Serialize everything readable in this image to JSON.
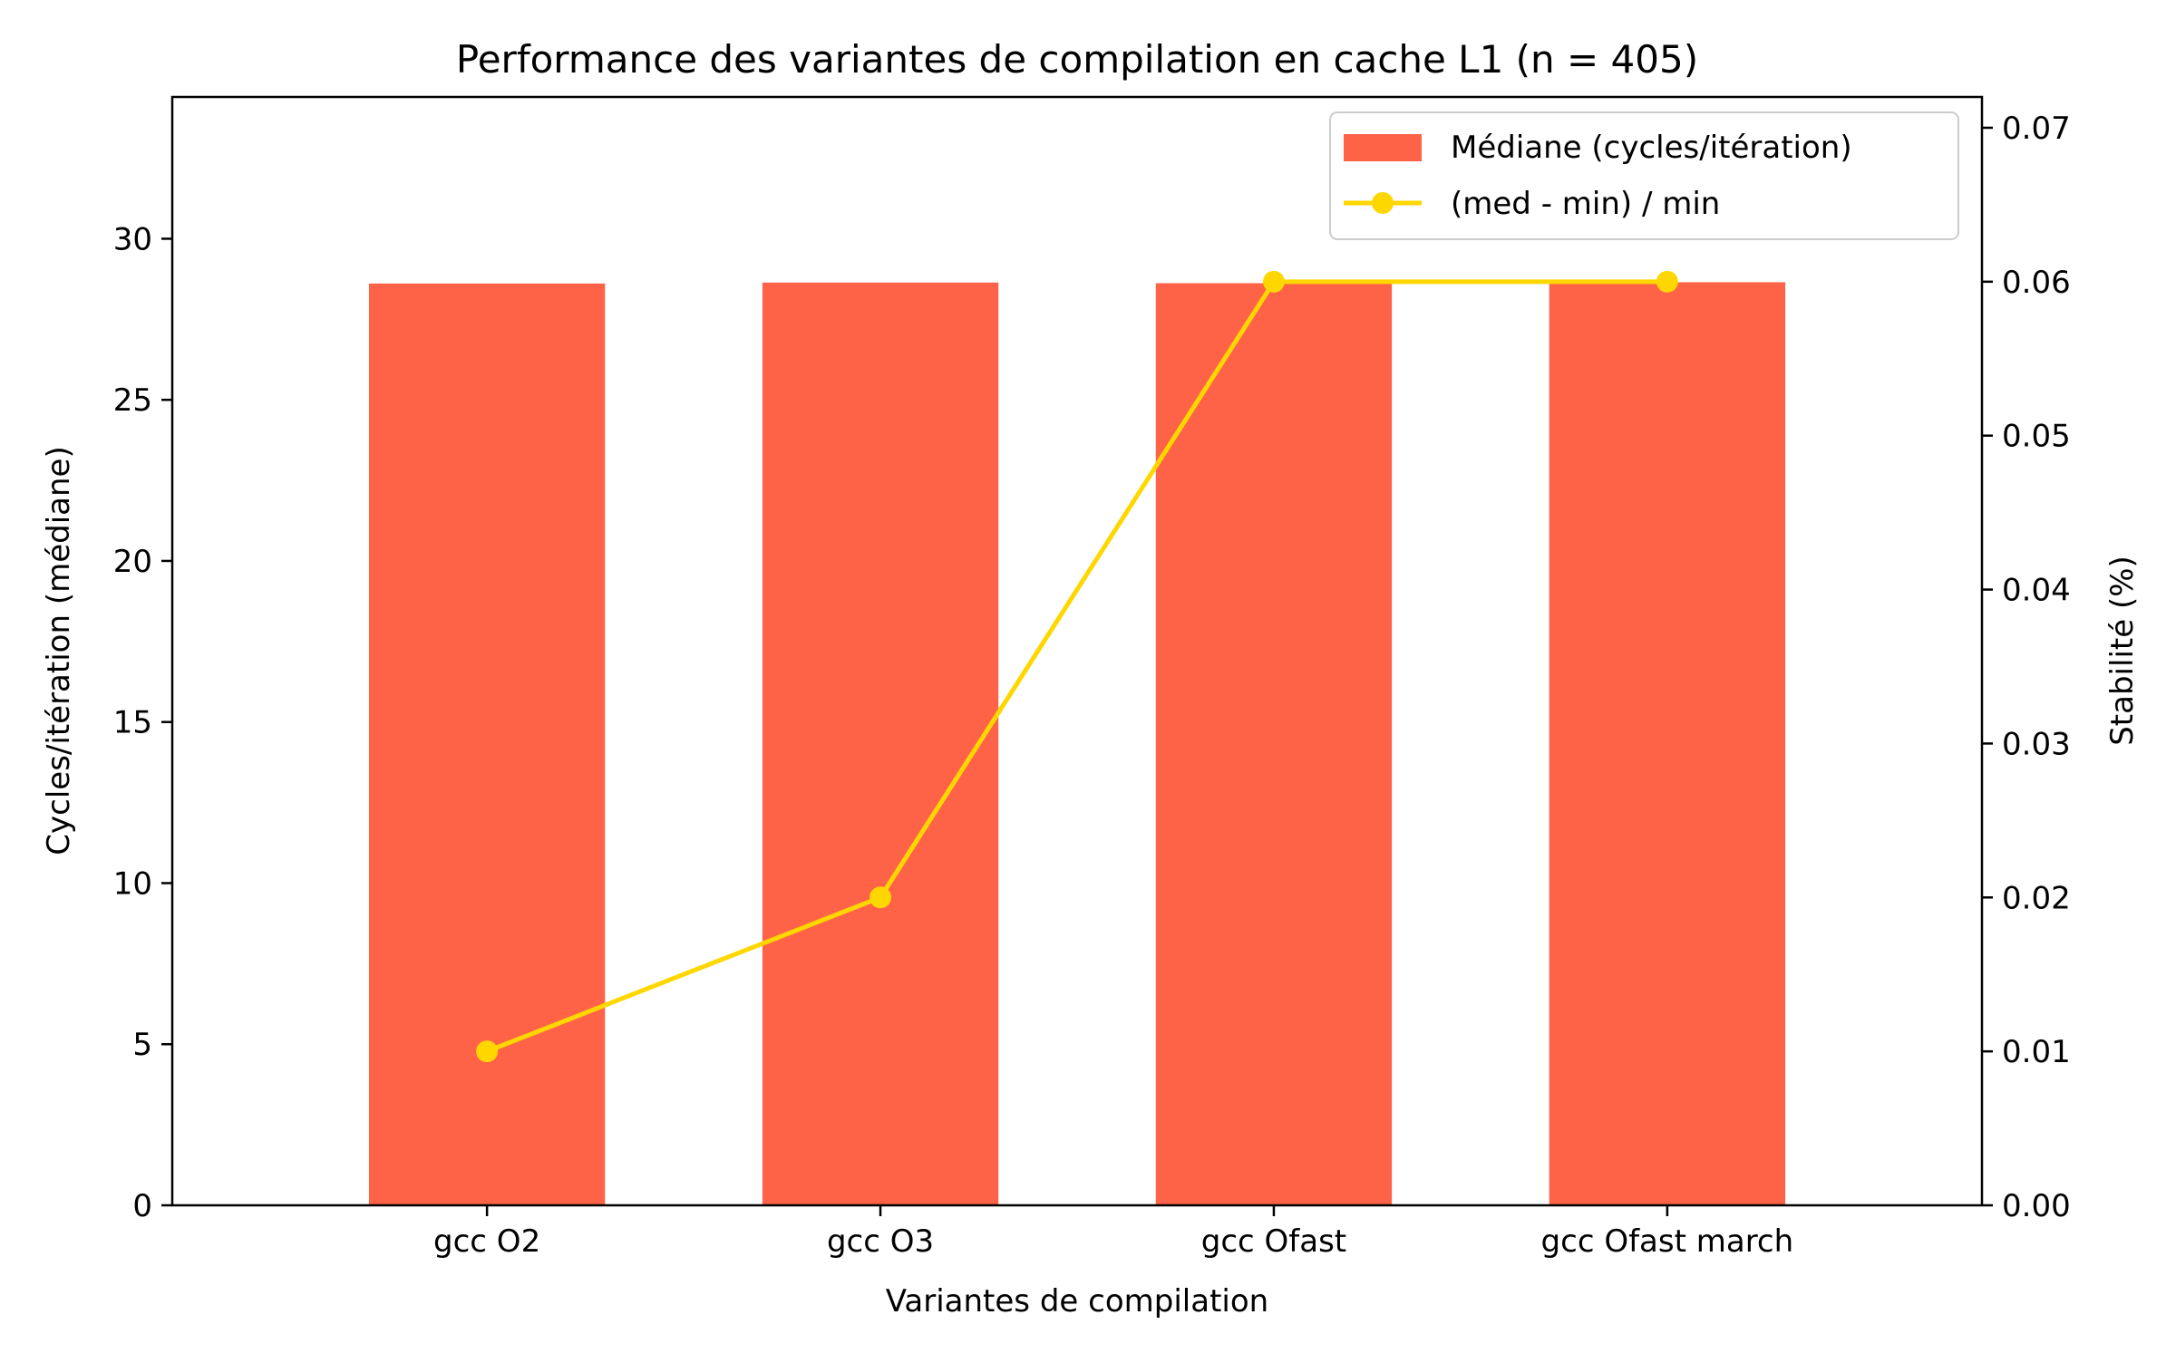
{
  "chart_data": {
    "type": "bar",
    "title": "Performance des variantes de compilation en cache L1 (n = 405)",
    "xlabel": "Variantes de compilation",
    "ylabel": "Cycles/itération (médiane)",
    "y2label": "Stabilité (%)",
    "categories": [
      "gcc O2",
      "gcc O3",
      "gcc Ofast",
      "gcc Ofast march"
    ],
    "ylim": [
      0,
      34.4
    ],
    "y2lim": [
      0,
      0.072
    ],
    "yticks": [
      0,
      5,
      10,
      15,
      20,
      25,
      30
    ],
    "y2ticks": [
      0.0,
      0.01,
      0.02,
      0.03,
      0.04,
      0.05,
      0.06,
      0.07
    ],
    "y2tick_labels": [
      "0.00",
      "0.01",
      "0.02",
      "0.03",
      "0.04",
      "0.05",
      "0.06",
      "0.07"
    ],
    "grid": false,
    "legend_position": "top-right",
    "series": [
      {
        "name": "Médiane (cycles/itération)",
        "kind": "bar",
        "axis": "left",
        "color": "#ff6347",
        "values": [
          28.61,
          28.64,
          28.62,
          28.65
        ]
      },
      {
        "name": "(med - min) / min",
        "kind": "line",
        "axis": "right",
        "color": "#ffd700",
        "marker": "circle",
        "values": [
          0.01,
          0.02,
          0.06,
          0.06
        ]
      }
    ]
  }
}
